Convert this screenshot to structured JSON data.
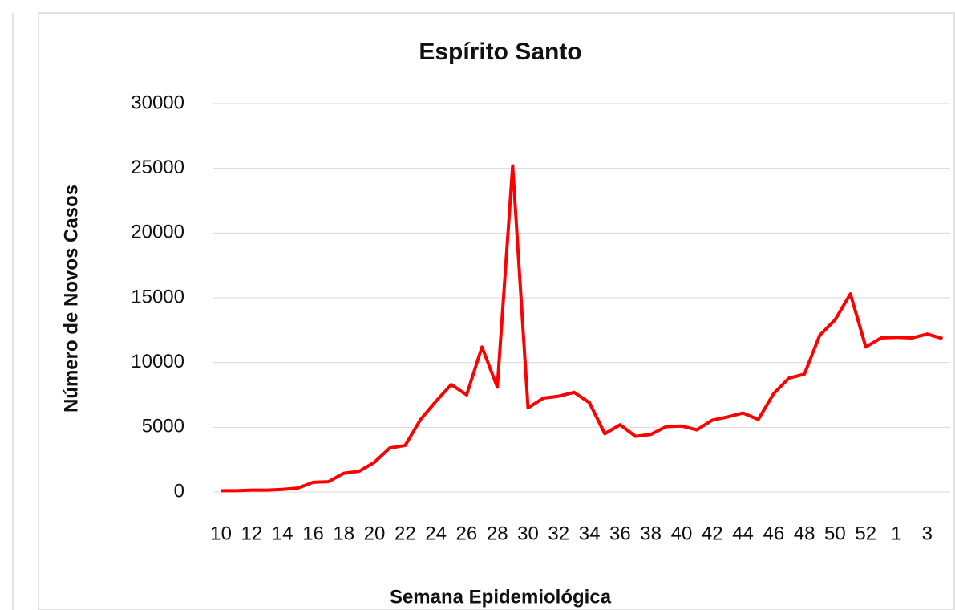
{
  "chart_data": {
    "type": "line",
    "title": "Espírito Santo",
    "x_label": "Semana Epidemiológica",
    "y_label": "Número de Novos Casos",
    "categories": [
      "10",
      null,
      "12",
      null,
      "14",
      null,
      "16",
      null,
      "18",
      null,
      "20",
      null,
      "22",
      null,
      "24",
      null,
      "26",
      null,
      "28",
      null,
      "30",
      null,
      "32",
      null,
      "34",
      null,
      "36",
      null,
      "38",
      null,
      "40",
      null,
      "42",
      null,
      "44",
      null,
      "46",
      null,
      "48",
      null,
      "50",
      null,
      "52",
      null,
      "1",
      null,
      "3",
      null
    ],
    "series": [
      {
        "name": "Espírito Santo",
        "color": "#ff0000",
        "values": [
          100,
          100,
          150,
          150,
          200,
          300,
          750,
          800,
          1450,
          1600,
          2300,
          3400,
          3600,
          5600,
          7000,
          8300,
          7500,
          11200,
          8100,
          25200,
          6500,
          7250,
          7400,
          7700,
          6900,
          4500,
          5200,
          4300,
          4450,
          5050,
          5100,
          4800,
          5550,
          5800,
          6100,
          5600,
          7600,
          8800,
          9100,
          12100,
          13300,
          15300,
          11200,
          11900,
          11950,
          11900,
          12200,
          11850
        ]
      }
    ],
    "ylim": [
      0,
      30000
    ],
    "yticks": [
      0,
      5000,
      10000,
      15000,
      20000,
      25000,
      30000
    ],
    "grid": true
  }
}
